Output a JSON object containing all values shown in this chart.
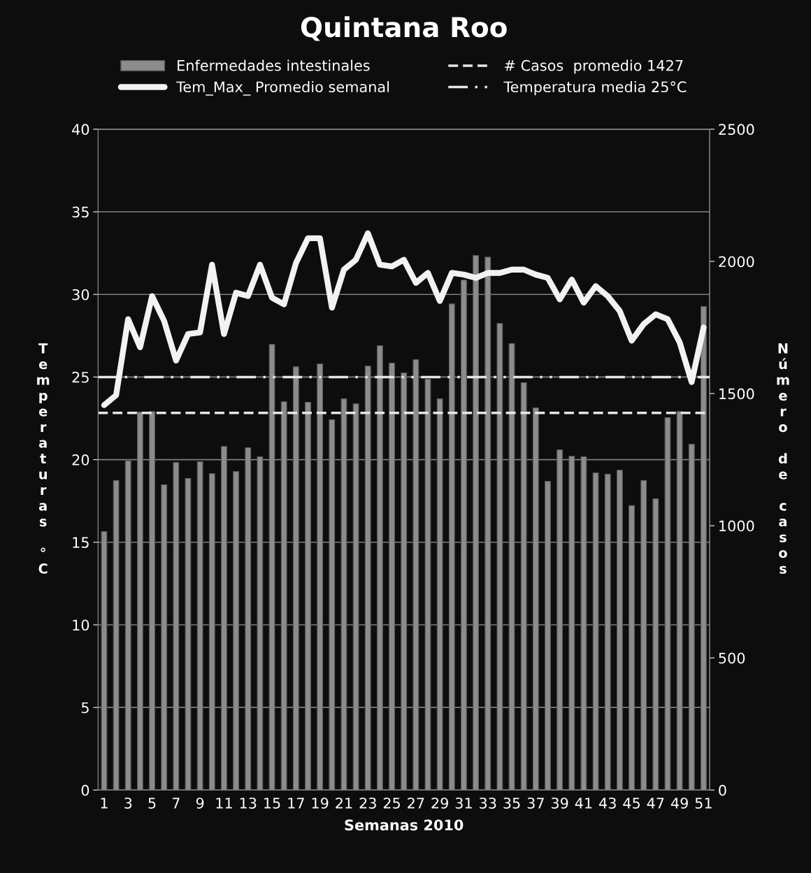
{
  "chart_data": {
    "type": "bar",
    "title": "Quintana Roo",
    "xlabel": "Semanas 2010",
    "ylabel": "Temperaturas °C",
    "y2label": "Número de casos",
    "categories": [
      "1",
      null,
      "3",
      null,
      "5",
      null,
      "7",
      null,
      "9",
      null,
      "11",
      null,
      "13",
      null,
      "15",
      null,
      "17",
      null,
      "19",
      null,
      "21",
      null,
      "23",
      null,
      "25",
      null,
      "27",
      null,
      "29",
      null,
      "31",
      null,
      "33",
      null,
      "35",
      null,
      "37",
      null,
      "39",
      null,
      "41",
      null,
      "43",
      null,
      "45",
      null,
      "47",
      null,
      "49",
      null,
      "51"
    ],
    "series": [
      {
        "name": "Enfermedades intestinales",
        "axis": "y2",
        "color": "#8c8c8c",
        "values": [
          978,
          1171,
          1245,
          1430,
          1432,
          1155,
          1239,
          1179,
          1242,
          1197,
          1300,
          1205,
          1295,
          1261,
          1686,
          1469,
          1601,
          1467,
          1612,
          1401,
          1480,
          1461,
          1604,
          1681,
          1615,
          1578,
          1628,
          1554,
          1480,
          1839,
          1929,
          2022,
          2016,
          1765,
          1689,
          1541,
          1446,
          1168,
          1287,
          1263,
          1261,
          1200,
          1195,
          1210,
          1076,
          1171,
          1102,
          1409,
          1432,
          1308,
          1829
        ]
      },
      {
        "name": "Tem_Max_ Promedio semanal",
        "type": "line",
        "color": "#f2f2f2",
        "values": [
          23.3,
          23.9,
          28.5,
          26.8,
          29.9,
          28.4,
          26.0,
          27.6,
          27.7,
          31.8,
          27.6,
          30.1,
          29.9,
          31.8,
          29.8,
          29.4,
          31.9,
          33.4,
          33.4,
          29.2,
          31.5,
          32.1,
          33.7,
          31.8,
          31.7,
          32.1,
          30.7,
          31.3,
          29.6,
          31.3,
          31.2,
          31.0,
          31.3,
          31.3,
          31.5,
          31.5,
          31.2,
          31.0,
          29.7,
          30.9,
          29.5,
          30.5,
          29.9,
          29.0,
          27.2,
          28.2,
          28.8,
          28.5,
          27.1,
          24.7,
          28.0
        ]
      }
    ],
    "ref_lines": [
      {
        "axis": "y2",
        "value": 1427,
        "label": "# Casos  promedio 1427",
        "color": "#e6e6e6",
        "line_style": "dashed"
      },
      {
        "axis": "y",
        "value": 25,
        "label": "Temperatura media 25°C",
        "color": "#e6e6e6",
        "line_style": "dashdot"
      }
    ],
    "ylim": [
      0,
      40
    ],
    "yticks": [
      0,
      5,
      10,
      15,
      20,
      25,
      30,
      35,
      40
    ],
    "y2lim": [
      0,
      2500
    ],
    "y2ticks": [
      0,
      500,
      1000,
      1500,
      2000,
      2500
    ],
    "grid": "y",
    "legend": "top"
  }
}
